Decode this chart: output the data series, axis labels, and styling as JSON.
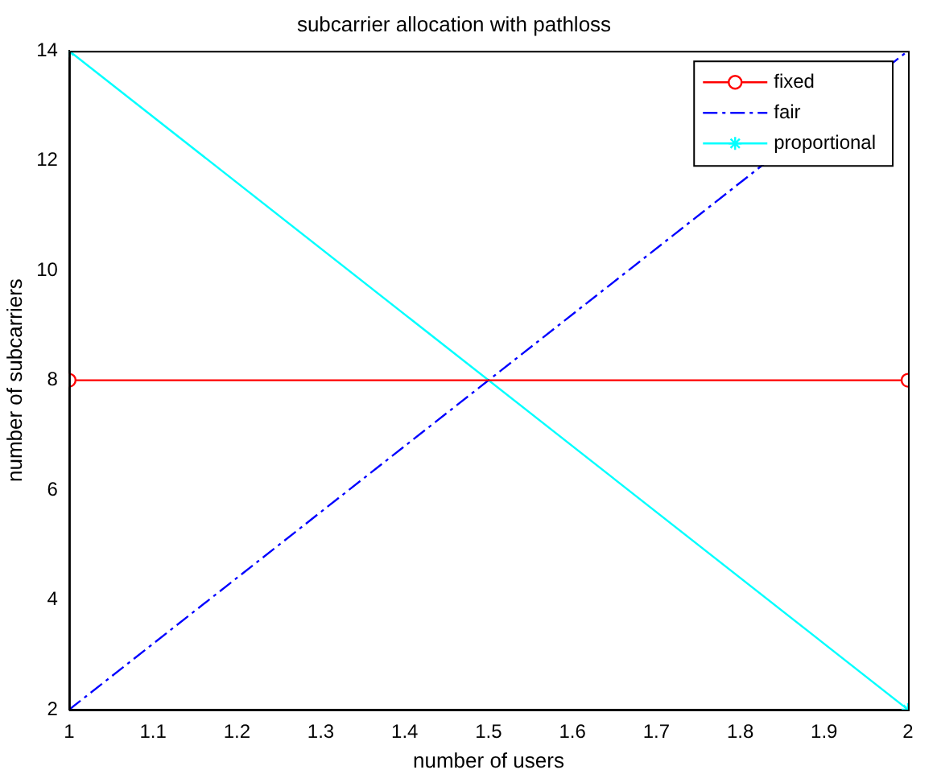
{
  "chart_data": {
    "type": "line",
    "title": "subcarrier allocation with pathloss",
    "xlabel": "number of users",
    "ylabel": "number of subcarriers",
    "x": [
      1,
      2
    ],
    "series": [
      {
        "name": "fixed",
        "color": "#ff0000",
        "values": [
          8,
          8
        ],
        "marker": "circle",
        "line_style": "solid"
      },
      {
        "name": "fair",
        "color": "#0000ff",
        "values": [
          2,
          14
        ],
        "marker": "none",
        "line_style": "dashed"
      },
      {
        "name": "proportional",
        "color": "#00ffff",
        "values": [
          14,
          2
        ],
        "marker": "cross",
        "line_style": "solid"
      }
    ],
    "xlim": [
      1,
      2
    ],
    "xticks": [
      1,
      1.1,
      1.2,
      1.3,
      1.4,
      1.5,
      1.6,
      1.7,
      1.8,
      1.9,
      2
    ],
    "ylim": [
      2,
      14
    ],
    "yticks": [
      2,
      4,
      6,
      8,
      10,
      12,
      14
    ],
    "grid": false,
    "legend": "top right"
  }
}
